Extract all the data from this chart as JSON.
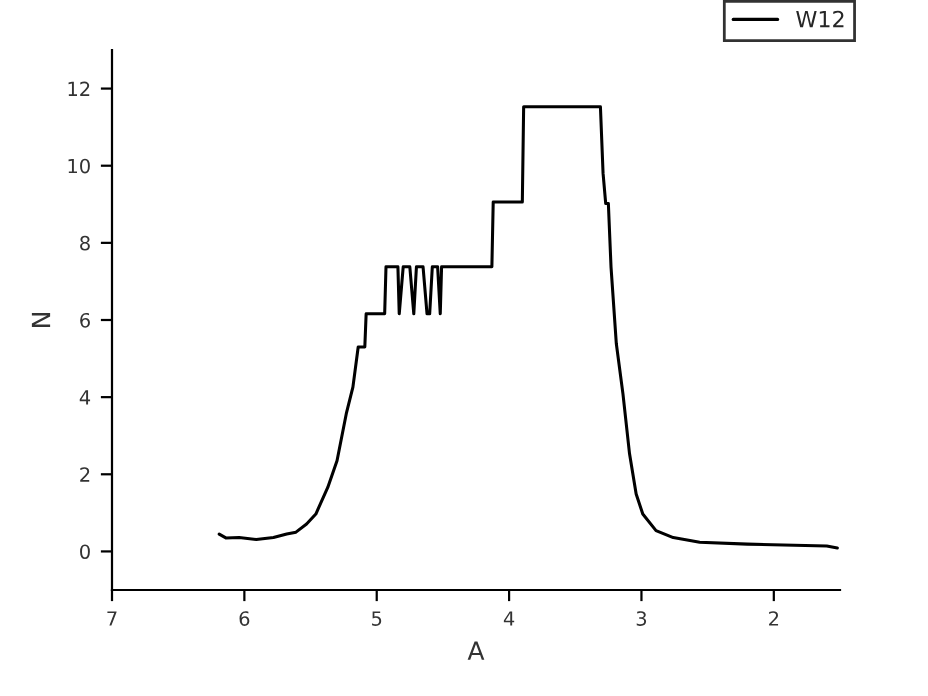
{
  "chart_data": {
    "type": "line",
    "xlabel": "A",
    "ylabel": "N",
    "xlim": [
      7,
      1.5
    ],
    "xticks": [
      7,
      6,
      5,
      4,
      3,
      2
    ],
    "ylim": [
      -1,
      13
    ],
    "yticks": [
      0,
      2,
      4,
      6,
      8,
      10,
      12
    ],
    "grid": false,
    "legend": "top right",
    "line_style": "solid",
    "marker": "none",
    "series": [
      {
        "name": "W12",
        "color": "#000000",
        "x": [
          6.19,
          6.14,
          6.04,
          5.91,
          5.78,
          5.68,
          5.61,
          5.53,
          5.46,
          5.37,
          5.3,
          5.23,
          5.18,
          5.14,
          5.09,
          5.08,
          4.94,
          4.93,
          4.84,
          4.83,
          4.8,
          4.75,
          4.72,
          4.7,
          4.65,
          4.62,
          4.6,
          4.58,
          4.54,
          4.52,
          4.51,
          4.13,
          4.12,
          3.9,
          3.89,
          3.31,
          3.29,
          3.27,
          3.25,
          3.23,
          3.19,
          3.14,
          3.09,
          3.04,
          2.99,
          2.89,
          2.76,
          2.56,
          2.2,
          1.6,
          1.52
        ],
        "values": [
          0.45,
          0.35,
          0.36,
          0.31,
          0.36,
          0.45,
          0.5,
          0.71,
          0.97,
          1.66,
          2.35,
          3.57,
          4.26,
          5.3,
          5.3,
          6.16,
          6.16,
          7.38,
          7.38,
          6.16,
          7.38,
          7.38,
          6.16,
          7.38,
          7.38,
          6.16,
          6.16,
          7.38,
          7.38,
          6.16,
          7.38,
          7.38,
          9.06,
          9.06,
          11.53,
          11.53,
          9.8,
          9.02,
          9.02,
          7.38,
          5.39,
          4.09,
          2.53,
          1.49,
          0.97,
          0.54,
          0.36,
          0.24,
          0.19,
          0.14,
          0.09
        ]
      }
    ]
  }
}
